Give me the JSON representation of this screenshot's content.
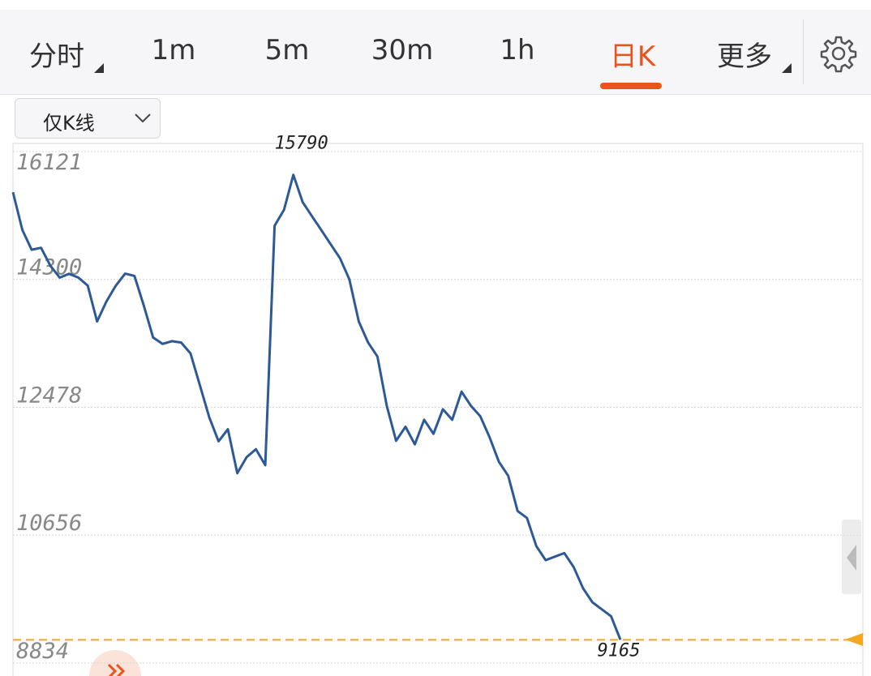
{
  "tabs": [
    "分时",
    "1m",
    "5m",
    "30m",
    "1h",
    "日K",
    "更多"
  ],
  "selected_tab": 5,
  "dropdown": "仅K线",
  "chart_data": {
    "type": "line",
    "color": "#2d5a97",
    "values": [
      15541,
      15007,
      14723,
      14750,
      14495,
      14325,
      14380,
      14325,
      14211,
      13700,
      13984,
      14211,
      14382,
      14350,
      13927,
      13472,
      13381,
      13420,
      13400,
      13245,
      12790,
      12335,
      11994,
      12164,
      11539,
      11767,
      11880,
      11653,
      15064,
      15291,
      15790,
      15400,
      15200,
      15000,
      14800,
      14600,
      14300,
      13700,
      13400,
      13200,
      12500,
      12000,
      12200,
      11950,
      12300,
      12100,
      12450,
      12300,
      12700,
      12500,
      12350,
      12050,
      11700,
      11500,
      11000,
      10900,
      10500,
      10300,
      10350,
      10400,
      10200,
      9900,
      9700,
      9600,
      9500,
      9165
    ],
    "ylim": [
      8834,
      16121
    ],
    "yticks": [
      8834,
      10656,
      12478,
      14300,
      16121
    ],
    "grid": true,
    "max_label": 15790,
    "min_label": 9165
  }
}
